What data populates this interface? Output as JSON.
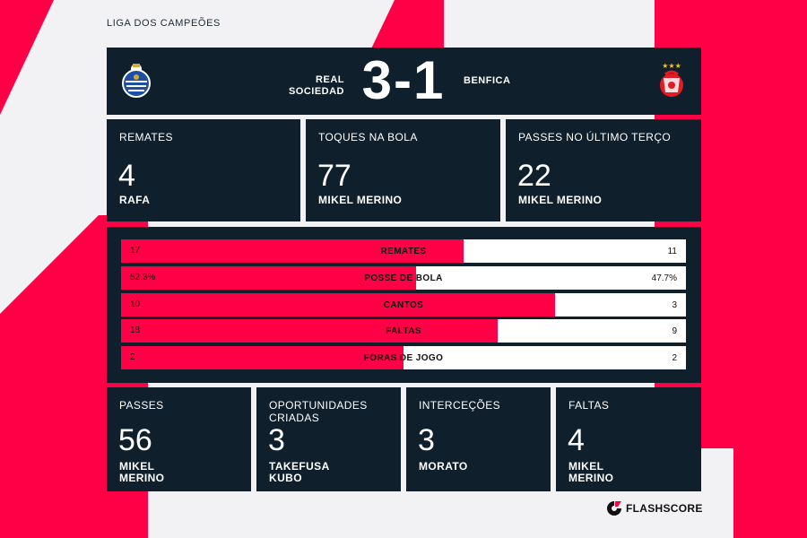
{
  "competition": "LIGA DOS CAMPEÕES",
  "match": {
    "home": {
      "name": "REAL SOCIEDAD",
      "name_line1": "REAL",
      "name_line2": "SOCIEDAD",
      "crest": "real-sociedad-crest"
    },
    "away": {
      "name": "BENFICA",
      "crest": "benfica-crest"
    },
    "score": "3-1"
  },
  "top_stats": [
    {
      "label": "REMATES",
      "value": "4",
      "player": "RAFA"
    },
    {
      "label": "TOQUES NA BOLA",
      "value": "77",
      "player": "MIKEL MERINO"
    },
    {
      "label": "PASSES NO ÚLTIMO TERÇO",
      "value": "22",
      "player": "MIKEL MERINO"
    }
  ],
  "comparison": [
    {
      "label": "REMATES",
      "home": "17",
      "away": "11",
      "home_share": 0.607
    },
    {
      "label": "POSSE DE BOLA",
      "home": "52.3%",
      "away": "47.7%",
      "home_share": 0.523
    },
    {
      "label": "CANTOS",
      "home": "10",
      "away": "3",
      "home_share": 0.769
    },
    {
      "label": "FALTAS",
      "home": "18",
      "away": "9",
      "home_share": 0.667
    },
    {
      "label": "FORAS DE JOGO",
      "home": "2",
      "away": "2",
      "home_share": 0.5
    }
  ],
  "bottom_stats": [
    {
      "label_line1": "PASSES",
      "label_line2": "",
      "value": "56",
      "player_line1": "MIKEL",
      "player_line2": "MERINO"
    },
    {
      "label_line1": "OPORTUNIDADES",
      "label_line2": "CRIADAS",
      "value": "3",
      "player_line1": "TAKEFUSA",
      "player_line2": "KUBO"
    },
    {
      "label_line1": "INTERCEÇÕES",
      "label_line2": "",
      "value": "3",
      "player_line1": "MORATO",
      "player_line2": ""
    },
    {
      "label_line1": "FALTAS",
      "label_line2": "",
      "value": "4",
      "player_line1": "MIKEL",
      "player_line2": "MERINO"
    }
  ],
  "brand": {
    "name": "FLASHSCORE",
    "icon": "flashscore-logo-icon"
  },
  "colors": {
    "accent": "#ff0046",
    "card": "#0f1f2c",
    "background": "#f2f2f4"
  }
}
